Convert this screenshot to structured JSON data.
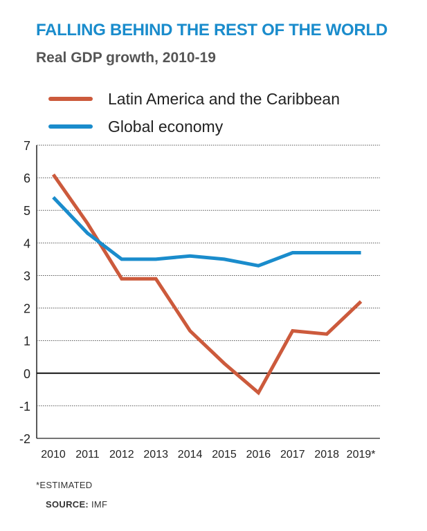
{
  "header": {
    "title": "FALLING BEHIND THE REST OF THE WORLD",
    "subtitle": "Real GDP growth, 2010-19"
  },
  "legend": [
    {
      "label": "Latin America and the Caribbean",
      "color": "#cc5a3c"
    },
    {
      "label": "Global economy",
      "color": "#1a8ccc"
    }
  ],
  "footer": {
    "note": "*ESTIMATED",
    "source_label": "SOURCE:",
    "source_value": "IMF"
  },
  "chart_data": {
    "type": "line",
    "title": "FALLING BEHIND THE REST OF THE WORLD",
    "subtitle": "Real GDP growth, 2010-19",
    "categories": [
      "2010",
      "2011",
      "2012",
      "2013",
      "2014",
      "2015",
      "2016",
      "2017",
      "2018",
      "2019*"
    ],
    "series": [
      {
        "name": "Latin America and the Caribbean",
        "color": "#cc5a3c",
        "values": [
          6.1,
          4.6,
          2.9,
          2.9,
          1.3,
          0.3,
          -0.6,
          1.3,
          1.2,
          2.2
        ]
      },
      {
        "name": "Global economy",
        "color": "#1a8ccc",
        "values": [
          5.4,
          4.3,
          3.5,
          3.5,
          3.6,
          3.5,
          3.3,
          3.7,
          3.7,
          3.7
        ]
      }
    ],
    "ylim": [
      -2,
      7
    ],
    "yticks": [
      -2,
      -1,
      0,
      1,
      2,
      3,
      4,
      5,
      6,
      7
    ],
    "grid": true,
    "legend_position": "top"
  }
}
